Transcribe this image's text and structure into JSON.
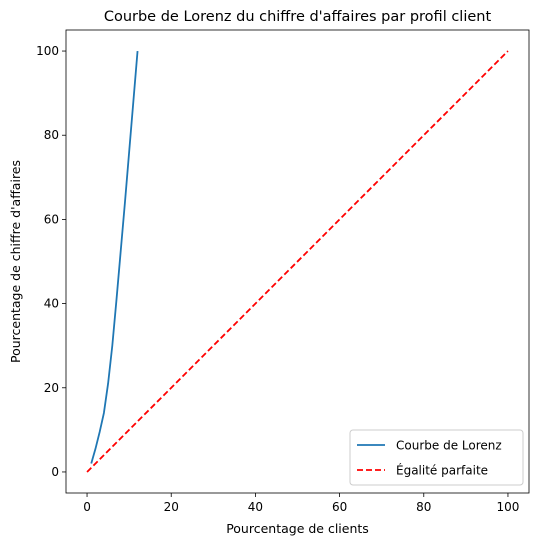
{
  "chart_data": {
    "type": "line",
    "title": "Courbe de Lorenz du chiffre d'affaires par profil client",
    "xlabel": "Pourcentage de clients",
    "ylabel": "Pourcentage de chiffre d'affaires",
    "xlim": [
      -5,
      105
    ],
    "ylim": [
      -5,
      105
    ],
    "xticks": [
      0,
      20,
      40,
      60,
      80,
      100
    ],
    "yticks": [
      0,
      20,
      40,
      60,
      80,
      100
    ],
    "grid": false,
    "legend_position": "bottom-right",
    "series": [
      {
        "name": "Courbe de Lorenz",
        "color": "#1f77b4",
        "style": "solid",
        "x": [
          1.0,
          2.0,
          3.0,
          4.0,
          5.0,
          6.0,
          7.0,
          8.0,
          9.0,
          10.0,
          11.0,
          12.0
        ],
        "y": [
          2.0,
          5.5,
          9.5,
          14.0,
          21.0,
          30.0,
          41.0,
          52.5,
          64.0,
          76.0,
          88.0,
          100.0
        ]
      },
      {
        "name": "Égalité parfaite",
        "color": "#ff0000",
        "style": "dashed",
        "x": [
          0,
          100
        ],
        "y": [
          0,
          100
        ]
      }
    ]
  }
}
